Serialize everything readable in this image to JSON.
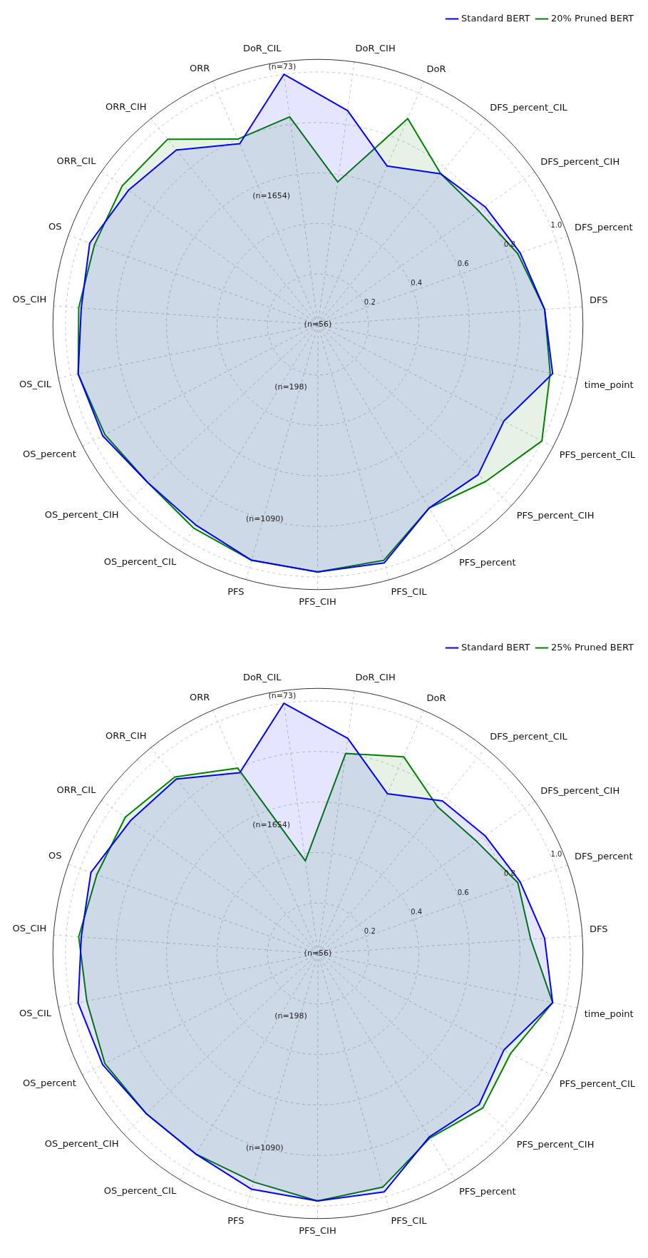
{
  "chart_data": [
    {
      "type": "radar",
      "categories": [
        "DoR_CIH",
        "DoR",
        "DFS_percent_CIL",
        "DFS_percent_CIH",
        "DFS_percent",
        "DFS",
        "time_point",
        "PFS_percent_CIL",
        "PFS_percent_CIH",
        "PFS_percent",
        "PFS_CIL",
        "PFS_CIH",
        "PFS",
        "OS_percent_CIL",
        "OS_percent_CIH",
        "OS_percent",
        "OS_CIL",
        "OS_CIH",
        "OS",
        "ORR_CIL",
        "ORR_CIH",
        "ORR",
        "DoR_CIL"
      ],
      "series": [
        {
          "name": "Standard BERT",
          "color": "#0000ff",
          "values": [
            0.855,
            0.685,
            0.77,
            0.81,
            0.85,
            0.9,
            0.95,
            0.83,
            0.87,
            0.85,
            0.98,
            0.98,
            0.97,
            0.93,
            0.92,
            0.96,
            0.97,
            0.94,
            0.96,
            0.92,
            0.89,
            0.78,
            1.0
          ]
        },
        {
          "name": "20% Pruned BERT",
          "color": "#008000",
          "values": [
            0.57,
            0.89,
            0.77,
            0.78,
            0.84,
            0.9,
            0.94,
            1.0,
            0.91,
            0.85,
            0.97,
            0.98,
            0.97,
            0.945,
            0.92,
            0.95,
            0.97,
            0.95,
            0.94,
            0.95,
            0.945,
            0.8,
            0.83
          ]
        }
      ],
      "ylim": [
        0,
        1.05
      ],
      "yticks": [
        0.2,
        0.4,
        0.6,
        0.8,
        {
          "value": 1,
          "label": "1.0"
        }
      ],
      "grid": true,
      "legend": "top right",
      "marker": "none",
      "annotations": [
        "(n=73)",
        "(n=1654)",
        "(n=56)",
        "(n=198)",
        "(n=1090)"
      ]
    },
    {
      "type": "radar",
      "categories": [
        "DoR_CIH",
        "DoR",
        "DFS_percent_CIL",
        "DFS_percent_CIH",
        "DFS_percent",
        "DFS",
        "time_point",
        "PFS_percent_CIL",
        "PFS_percent_CIH",
        "PFS_percent",
        "PFS_CIL",
        "PFS_CIH",
        "PFS",
        "OS_percent_CIL",
        "OS_percent_CIH",
        "OS_percent",
        "OS_CIL",
        "OS_CIH",
        "OS",
        "ORR_CIL",
        "ORR_CIH",
        "ORR",
        "DoR_CIL"
      ],
      "series": [
        {
          "name": "Standard BERT",
          "color": "#0000ff",
          "values": [
            0.86,
            0.69,
            0.78,
            0.81,
            0.85,
            0.9,
            0.95,
            0.83,
            0.875,
            0.85,
            0.98,
            0.98,
            0.97,
            0.93,
            0.93,
            0.96,
            0.97,
            0.94,
            0.955,
            0.91,
            0.89,
            0.78,
            1.0
          ]
        },
        {
          "name": "25% Pruned BERT",
          "color": "#008000",
          "values": [
            0.8,
            0.85,
            0.75,
            0.77,
            0.84,
            0.845,
            0.95,
            0.86,
            0.895,
            0.855,
            0.96,
            0.98,
            0.94,
            0.93,
            0.93,
            0.95,
            0.935,
            0.95,
            0.93,
            0.935,
            0.9,
            0.8,
            0.37
          ]
        }
      ],
      "ylim": [
        0,
        1.05
      ],
      "yticks": [
        0.2,
        0.4,
        0.6,
        0.8,
        {
          "value": 1,
          "label": "1.0"
        }
      ],
      "grid": true,
      "legend": "top right",
      "marker": "none",
      "annotations": [
        "(n=73)",
        "(n=1654)",
        "(n=56)",
        "(n=198)",
        "(n=1090)"
      ]
    }
  ]
}
